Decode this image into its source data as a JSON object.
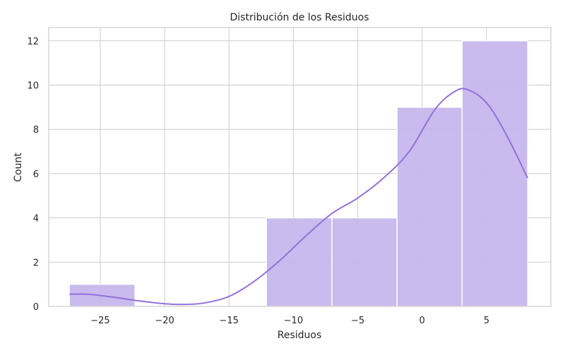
{
  "chart_data": {
    "type": "bar",
    "title": "Distribución de los Residuos",
    "xlabel": "Residuos",
    "ylabel": "Count",
    "xlim": [
      -29,
      10
    ],
    "ylim": [
      0,
      12.6
    ],
    "xticks": [
      -25,
      -20,
      -15,
      -10,
      -5,
      0,
      5
    ],
    "xtick_labels": [
      "−25",
      "−20",
      "−15",
      "−10",
      "−5",
      "0",
      "5"
    ],
    "yticks": [
      0,
      2,
      4,
      6,
      8,
      10,
      12
    ],
    "ytick_labels": [
      "0",
      "2",
      "4",
      "6",
      "8",
      "10",
      "12"
    ],
    "grid": true,
    "colors": {
      "bar_fill": "#c6b7ec",
      "bar_edge": "#ffffff",
      "kde_line": "#9370db"
    },
    "bins": [
      {
        "x0": -27.4,
        "x1": -22.3,
        "count": 1
      },
      {
        "x0": -22.3,
        "x1": -17.2,
        "count": 0
      },
      {
        "x0": -17.2,
        "x1": -12.1,
        "count": 0
      },
      {
        "x0": -12.1,
        "x1": -7.0,
        "count": 4
      },
      {
        "x0": -7.0,
        "x1": -1.95,
        "count": 4
      },
      {
        "x0": -1.95,
        "x1": 3.1,
        "count": 9
      },
      {
        "x0": 3.1,
        "x1": 8.2,
        "count": 12
      }
    ],
    "kde": {
      "x": [
        -27.4,
        -26,
        -24,
        -22,
        -20,
        -18.5,
        -17,
        -15,
        -13,
        -11,
        -9,
        -7,
        -5,
        -3,
        -1,
        1,
        2.5,
        3.5,
        5,
        6.5,
        8.2
      ],
      "y": [
        0.55,
        0.55,
        0.42,
        0.25,
        0.12,
        0.09,
        0.15,
        0.45,
        1.15,
        2.1,
        3.2,
        4.2,
        4.9,
        5.8,
        7.0,
        8.9,
        9.7,
        9.8,
        9.2,
        7.8,
        5.8
      ]
    }
  }
}
